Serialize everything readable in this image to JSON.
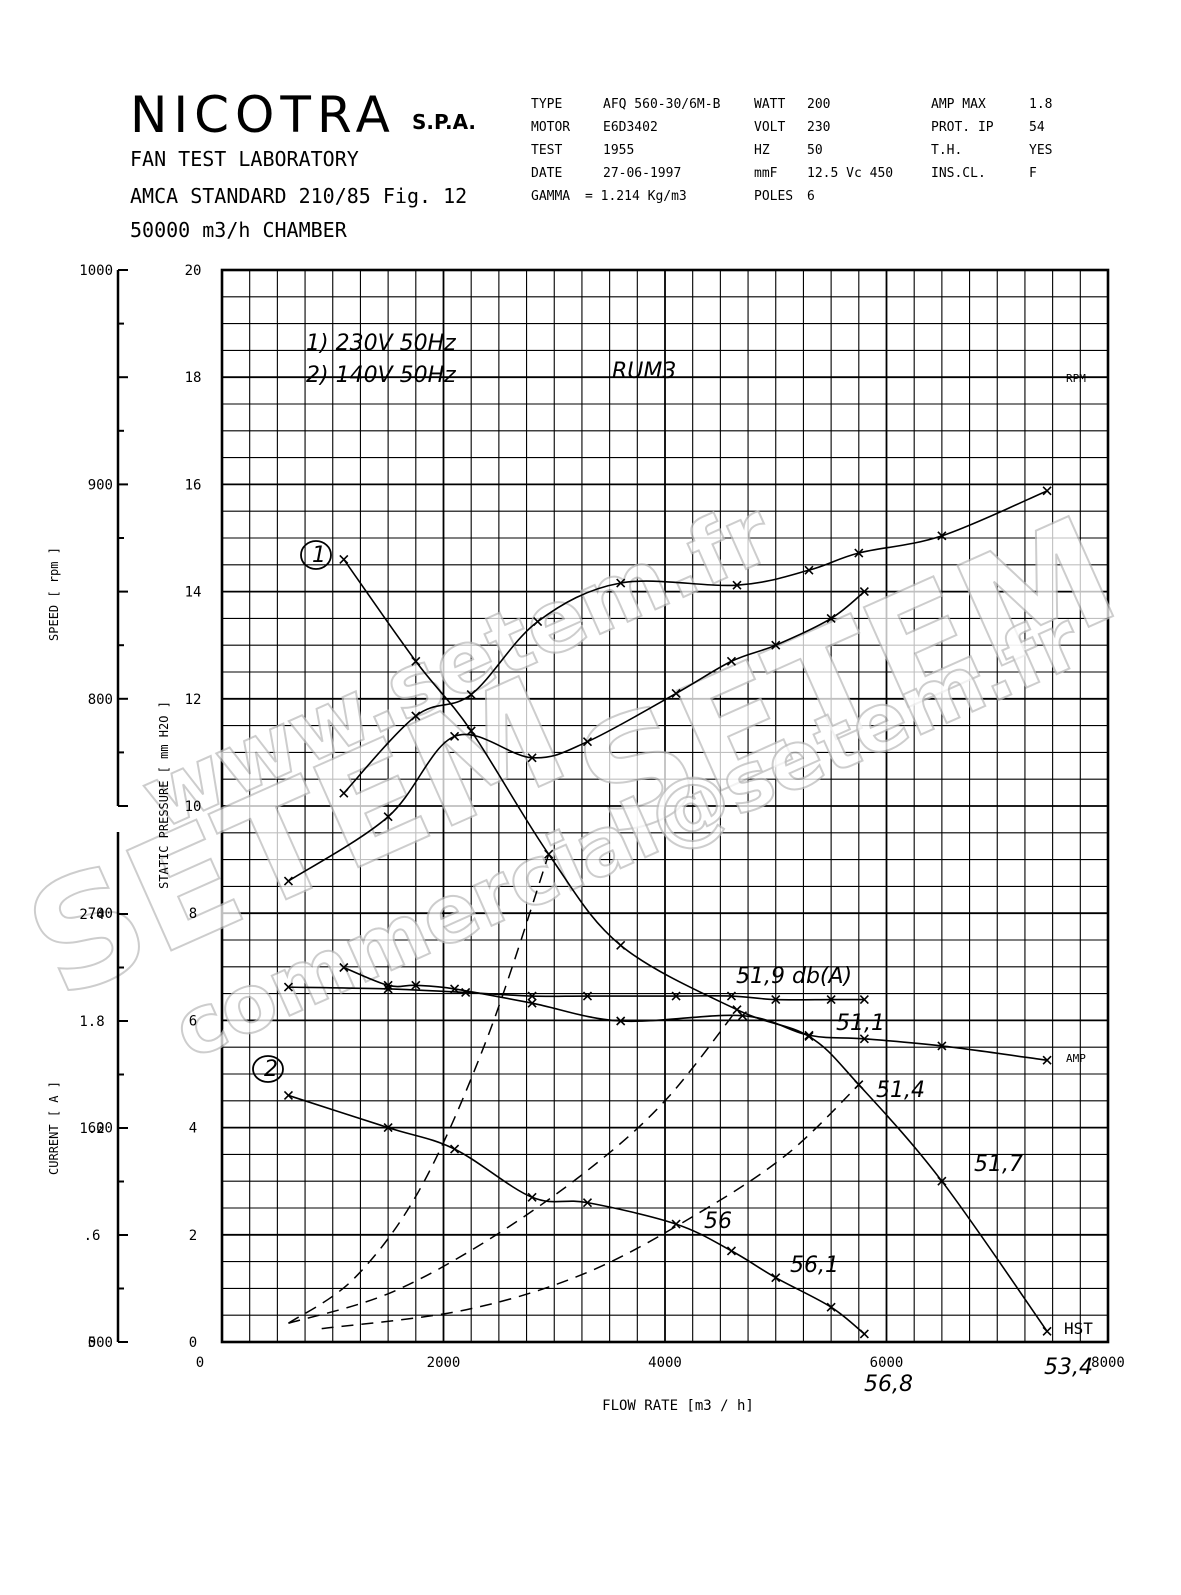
{
  "header": {
    "brand": "NICOTRA",
    "brand_suffix": "S.P.A.",
    "lab": "FAN TEST LABORATORY",
    "standard": "AMCA STANDARD 210/85 Fig. 12",
    "chamber": "50000 m3/h  CHAMBER"
  },
  "specs": {
    "col1": [
      {
        "label": "TYPE",
        "value": "AFQ 560-30/6M-B"
      },
      {
        "label": "MOTOR",
        "value": "E6D3402"
      },
      {
        "label": "TEST",
        "value": "1955"
      },
      {
        "label": "DATE",
        "value": "27-06-1997"
      },
      {
        "label": "GAMMA",
        "value": "= 1.214 Kg/m3"
      }
    ],
    "col2": [
      {
        "label": "WATT",
        "value": "200"
      },
      {
        "label": "VOLT",
        "value": "230"
      },
      {
        "label": "HZ",
        "value": "50"
      },
      {
        "label": "mmF",
        "value": "12.5  Vc 450"
      },
      {
        "label": "POLES",
        "value": "6"
      }
    ],
    "col3": [
      {
        "label": "AMP MAX",
        "value": "1.8"
      },
      {
        "label": "PROT.  IP",
        "value": "54"
      },
      {
        "label": "T.H.",
        "value": "YES"
      },
      {
        "label": "INS.CL.",
        "value": "F"
      }
    ]
  },
  "watermarks": [
    "www.setem.fr",
    "SETEM",
    "SETEM",
    "commercial@setem.fr"
  ],
  "chart_data": {
    "type": "line",
    "xlabel": "FLOW RATE  [m3 / h]",
    "xlim": [
      0,
      8000
    ],
    "x_ticks": [
      "0",
      "2000",
      "4000",
      "6000",
      "8000"
    ],
    "axes": {
      "speed": {
        "label": "SPEED    [ rpm ]",
        "ylim": [
          500,
          1000
        ],
        "ticks": [
          "500",
          "600",
          "700",
          "800",
          "900",
          "1000"
        ]
      },
      "pressure": {
        "label": "STATIC PRESSURE    [ mm H2O ]",
        "ylim": [
          0,
          20
        ],
        "ticks": [
          "0",
          "2",
          "4",
          "6",
          "8",
          "10",
          "12",
          "14",
          "16",
          "18",
          "20"
        ]
      },
      "current": {
        "label": "CURRENT    [ A ]",
        "ylim": [
          0,
          2.4
        ],
        "ticks": [
          "0",
          ".6",
          "1.2",
          "1.8",
          "2.4"
        ]
      }
    },
    "series": [
      {
        "name": "RPM",
        "axis": "speed",
        "marker": "x",
        "points": [
          [
            1100,
            756
          ],
          [
            1750,
            792
          ],
          [
            2250,
            802
          ],
          [
            2850,
            836
          ],
          [
            3600,
            854
          ],
          [
            4650,
            853
          ],
          [
            5300,
            860
          ],
          [
            5750,
            868
          ],
          [
            6500,
            876
          ],
          [
            7450,
            897
          ]
        ]
      },
      {
        "name": "AMP",
        "axis": "current",
        "marker": "x",
        "points": [
          [
            1100,
            2.1
          ],
          [
            1500,
            2.0
          ],
          [
            1750,
            2.0
          ],
          [
            2100,
            1.98
          ],
          [
            2800,
            1.9
          ],
          [
            3600,
            1.8
          ],
          [
            4700,
            1.83
          ],
          [
            5300,
            1.72
          ],
          [
            5800,
            1.7
          ],
          [
            6500,
            1.66
          ],
          [
            7450,
            1.58
          ]
        ]
      },
      {
        "name": "HST",
        "axis": "pressure",
        "marker": "x",
        "points": [
          [
            1100,
            14.6
          ],
          [
            1750,
            12.7
          ],
          [
            2250,
            11.4
          ],
          [
            2950,
            9.1
          ],
          [
            3600,
            7.4
          ],
          [
            4650,
            6.2
          ],
          [
            5300,
            5.7
          ],
          [
            5750,
            4.8
          ],
          [
            6500,
            3.0
          ],
          [
            7450,
            0.2
          ]
        ]
      },
      {
        "name": "",
        "axis": "pressure",
        "marker": "x",
        "points": [
          [
            600,
            8.6
          ],
          [
            1500,
            9.8
          ],
          [
            2100,
            11.3
          ],
          [
            2800,
            10.9
          ],
          [
            3300,
            11.2
          ],
          [
            4100,
            12.1
          ],
          [
            4600,
            12.7
          ],
          [
            5000,
            13.0
          ],
          [
            5500,
            13.5
          ],
          [
            5800,
            14.0
          ]
        ]
      },
      {
        "name": "",
        "axis": "current",
        "marker": "x",
        "points": [
          [
            600,
            1.99
          ],
          [
            1500,
            1.98
          ],
          [
            2200,
            1.96
          ],
          [
            2800,
            1.94
          ],
          [
            3300,
            1.94
          ],
          [
            4100,
            1.94
          ],
          [
            4600,
            1.94
          ],
          [
            5000,
            1.92
          ],
          [
            5500,
            1.92
          ],
          [
            5800,
            1.92
          ]
        ]
      },
      {
        "name": "",
        "axis": "pressure",
        "marker": "x",
        "points": [
          [
            600,
            4.6
          ],
          [
            1500,
            4.0
          ],
          [
            2100,
            3.6
          ],
          [
            2800,
            2.7
          ],
          [
            3300,
            2.6
          ],
          [
            4100,
            2.2
          ],
          [
            4600,
            1.7
          ],
          [
            5000,
            1.2
          ],
          [
            5500,
            0.65
          ],
          [
            5800,
            0.15
          ]
        ]
      }
    ],
    "system_curves": [
      {
        "style": "dashed",
        "points": [
          [
            600,
            0.35
          ],
          [
            1200,
            1.2
          ],
          [
            1800,
            2.9
          ],
          [
            2400,
            5.7
          ],
          [
            2950,
            9.1
          ]
        ]
      },
      {
        "style": "dashed",
        "points": [
          [
            600,
            0.35
          ],
          [
            1500,
            0.9
          ],
          [
            2400,
            1.9
          ],
          [
            3300,
            3.2
          ],
          [
            4000,
            4.5
          ],
          [
            4650,
            6.2
          ]
        ]
      },
      {
        "style": "dashed",
        "points": [
          [
            900,
            0.25
          ],
          [
            2200,
            0.6
          ],
          [
            3300,
            1.3
          ],
          [
            4300,
            2.4
          ],
          [
            5100,
            3.5
          ],
          [
            5750,
            4.8
          ]
        ]
      }
    ],
    "annotations": [
      {
        "text": "1) 230V 50Hz"
      },
      {
        "text": "2) 140V 50Hz"
      },
      {
        "text": "RUM3"
      },
      {
        "text": "1"
      },
      {
        "text": "2"
      },
      {
        "text": "51,9 db(A)"
      },
      {
        "text": "51,1"
      },
      {
        "text": "51,4"
      },
      {
        "text": "51,7"
      },
      {
        "text": "56"
      },
      {
        "text": "56,1"
      },
      {
        "text": "56,8"
      },
      {
        "text": "53,4"
      }
    ],
    "curve_labels": [
      "RPM",
      "AMP",
      "HST"
    ],
    "grid": true
  }
}
